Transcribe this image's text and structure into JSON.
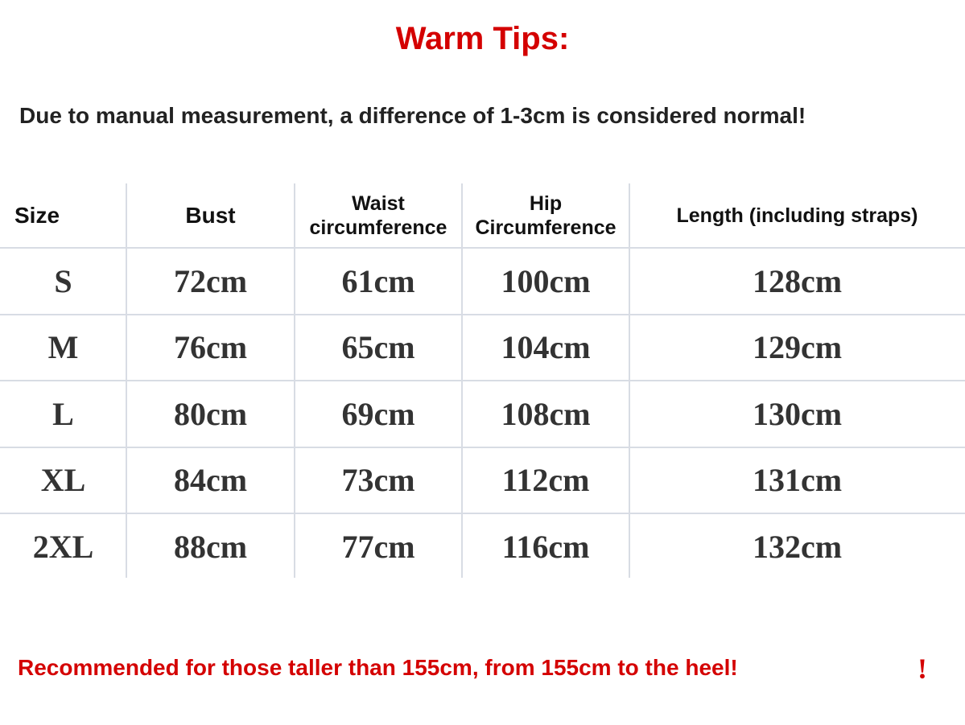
{
  "header": {
    "title": "Warm Tips:",
    "note": "Due to manual measurement, a difference of 1-3cm is considered normal!"
  },
  "table": {
    "columns": [
      "Size",
      "Bust",
      "Waist circumference",
      "Hip Circumference",
      "Length (including straps)"
    ],
    "rows": [
      [
        "S",
        "72cm",
        "61cm",
        "100cm",
        "128cm"
      ],
      [
        "M",
        "76cm",
        "65cm",
        "104cm",
        "129cm"
      ],
      [
        "L",
        "80cm",
        "69cm",
        "108cm",
        "130cm"
      ],
      [
        "XL",
        "84cm",
        "73cm",
        "112cm",
        "131cm"
      ],
      [
        "2XL",
        "88cm",
        "77cm",
        "116cm",
        "132cm"
      ]
    ]
  },
  "footer": {
    "text": "Recommended for those taller than 155cm, from 155cm to the heel!",
    "mark": "!"
  }
}
